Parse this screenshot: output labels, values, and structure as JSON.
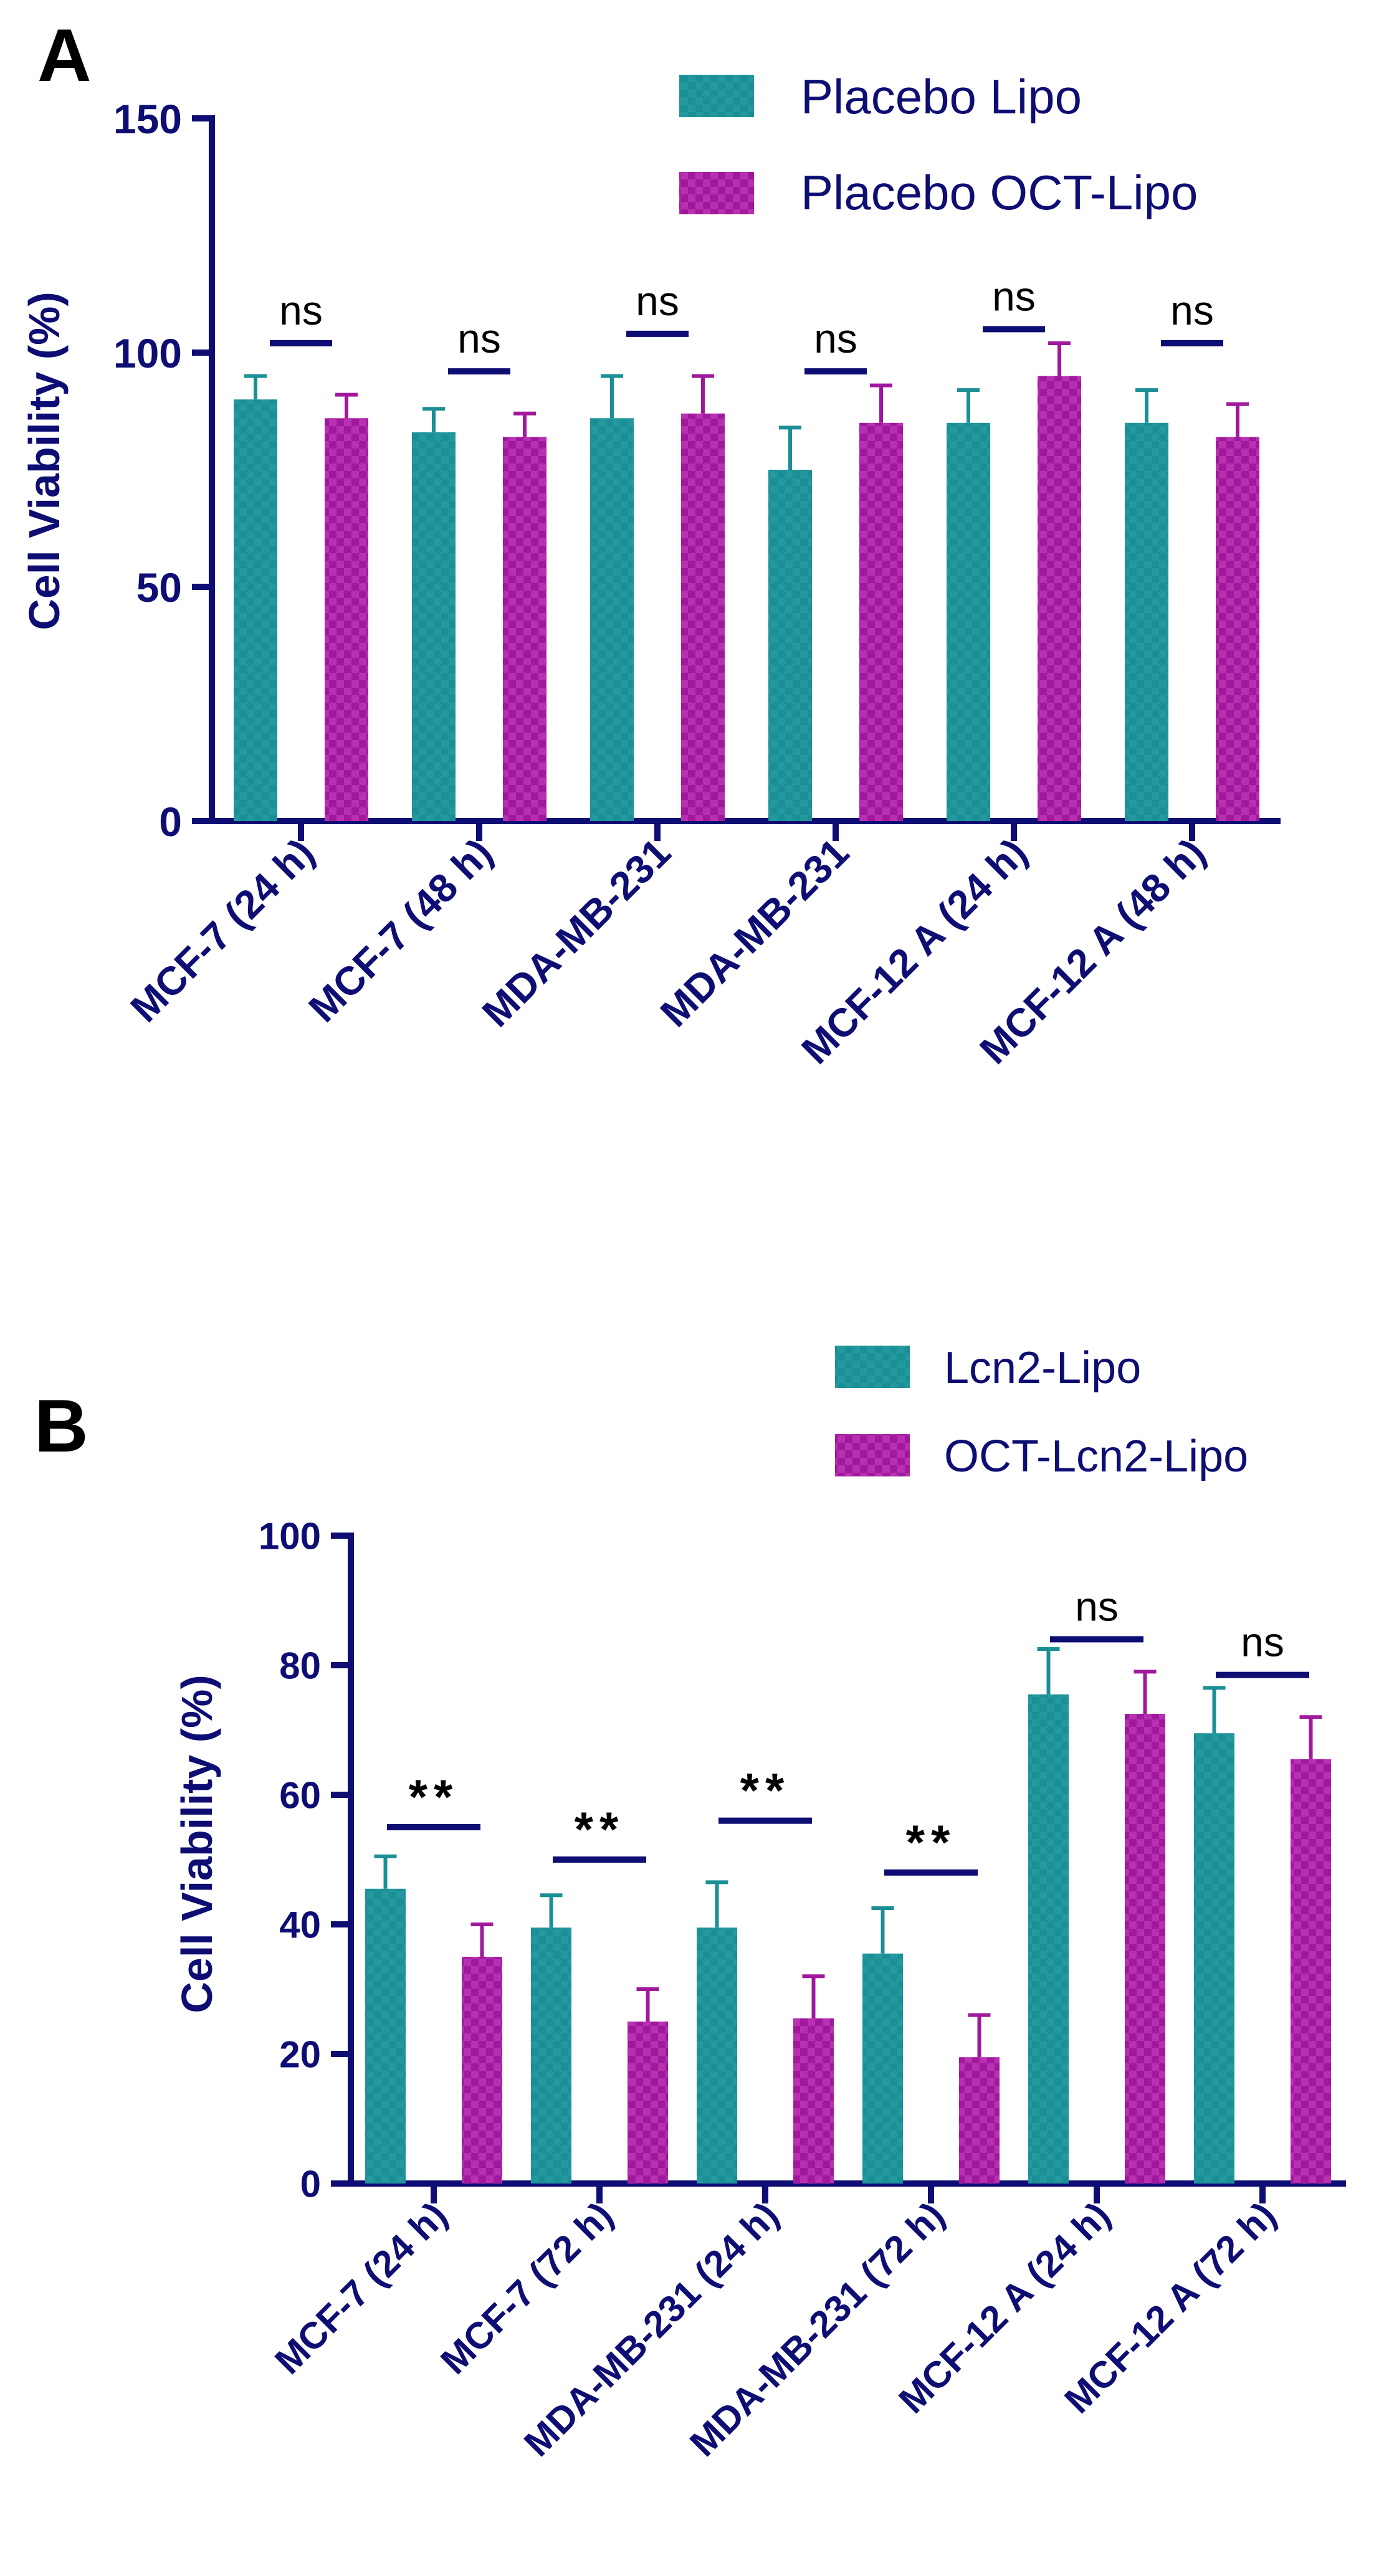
{
  "colors": {
    "axis": "#0d0d73",
    "series1": "#1a8f95",
    "series2": "#a0199c",
    "text": "#000000"
  },
  "chart_data": [
    {
      "panel": "A",
      "type": "bar",
      "ylabel": "Cell Viability (%)",
      "ylim": [
        0,
        150
      ],
      "yticks": [
        "0",
        "50",
        "100",
        "150"
      ],
      "categories": [
        "MCF-7 (24 h)",
        "MCF-7 (48 h)",
        "MDA-MB-231",
        "MDA-MB-231",
        "MCF-12 A (24 h)",
        "MCF-12 A (48 h)"
      ],
      "series": [
        {
          "name": "Placebo Lipo",
          "values": [
            90,
            83,
            86,
            75,
            85,
            85
          ],
          "errors": [
            5,
            5,
            9,
            9,
            7,
            7
          ]
        },
        {
          "name": "Placebo OCT-Lipo",
          "values": [
            86,
            82,
            87,
            85,
            95,
            82
          ],
          "errors": [
            5,
            5,
            8,
            8,
            7,
            7
          ]
        }
      ],
      "annotations": [
        "ns",
        "ns",
        "ns",
        "ns",
        "ns",
        "ns"
      ],
      "annotation_level": [
        102,
        96,
        104,
        96,
        105,
        102
      ],
      "legend_position": "top-right"
    },
    {
      "panel": "B",
      "type": "bar",
      "ylabel": "Cell Viability (%)",
      "ylim": [
        0,
        100
      ],
      "yticks": [
        "0",
        "20",
        "40",
        "60",
        "80",
        "100"
      ],
      "categories": [
        "MCF-7 (24 h)",
        "MCF-7 (72 h)",
        "MDA-MB-231 (24 h)",
        "MDA-MB-231 (72 h)",
        "MCF-12 A (24 h)",
        "MCF-12 A (72 h)"
      ],
      "series": [
        {
          "name": "Lcn2-Lipo",
          "values": [
            45.5,
            39.5,
            39.5,
            35.5,
            75.5,
            69.5
          ],
          "errors": [
            5,
            5,
            7,
            7,
            7,
            7
          ]
        },
        {
          "name": "OCT-Lcn2-Lipo",
          "values": [
            35,
            25,
            25.5,
            19.5,
            72.5,
            65.5
          ],
          "errors": [
            5,
            5,
            6.5,
            6.5,
            6.5,
            6.5
          ]
        }
      ],
      "annotations": [
        "**",
        "**",
        "**",
        "**",
        "ns",
        "ns"
      ],
      "annotation_level": [
        55,
        50,
        56,
        48,
        84,
        78.5
      ],
      "legend_position": "top-right"
    }
  ]
}
